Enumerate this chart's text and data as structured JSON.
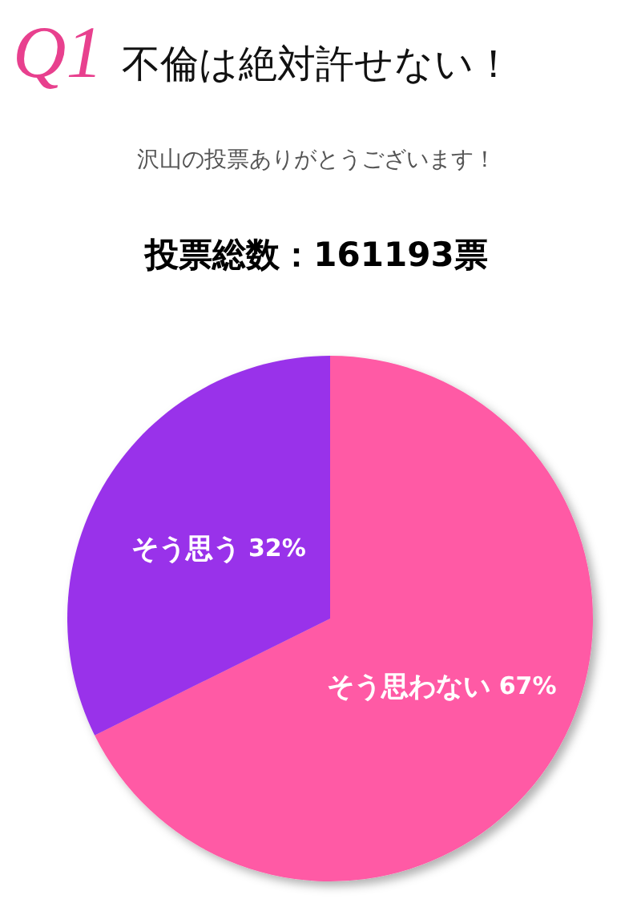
{
  "chart_data": {
    "type": "pie",
    "title": "Q1 不倫は絶対許せない！",
    "subtitle": "沢山の投票ありがとうございます！",
    "annotations": [
      "投票総数：161193票"
    ],
    "categories": [
      "そう思わない",
      "そう思う"
    ],
    "values": [
      67,
      32
    ],
    "value_labels": [
      "67%",
      "32%"
    ],
    "colors": [
      "#ff5aa5",
      "#9933ea"
    ]
  }
}
